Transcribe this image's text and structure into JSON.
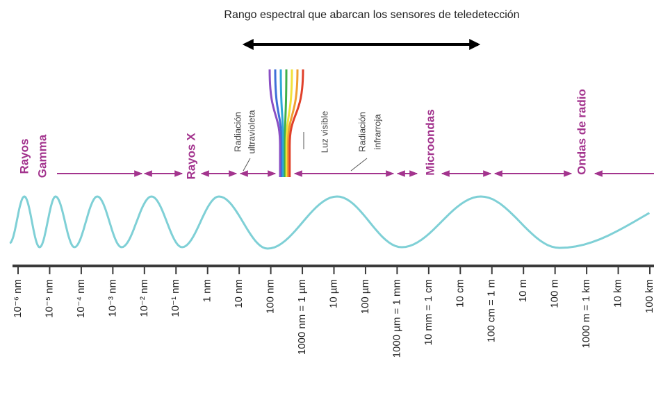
{
  "title": "Rango espectral que abarcan los sensores de teledetección",
  "bands": [
    {
      "lines": [
        "Rayos",
        "Gamma"
      ]
    },
    {
      "lines": [
        "Rayos X"
      ]
    },
    {
      "lines": [
        "Radiación",
        "ultravioleta"
      ]
    },
    {
      "lines": [
        "Luz visible"
      ]
    },
    {
      "lines": [
        "Radiación",
        "infrarroja"
      ]
    },
    {
      "lines": [
        "Microondas"
      ]
    },
    {
      "lines": [
        "Ondas de radio"
      ]
    }
  ],
  "scale_labels": [
    "10⁻⁶ nm",
    "10⁻⁵ nm",
    "10⁻⁴ nm",
    "10⁻³ nm",
    "10⁻² nm",
    "10⁻¹ nm",
    "1 nm",
    "10 nm",
    "100 nm",
    "1000 nm = 1 µm",
    "10 µm",
    "100 µm",
    "1000 µm = 1 mm",
    "10 mm = 1 cm",
    "10 cm",
    "100 cm = 1 m",
    "10 m",
    "100 m",
    "1000 m = 1 km",
    "10 km",
    "100 km"
  ]
}
